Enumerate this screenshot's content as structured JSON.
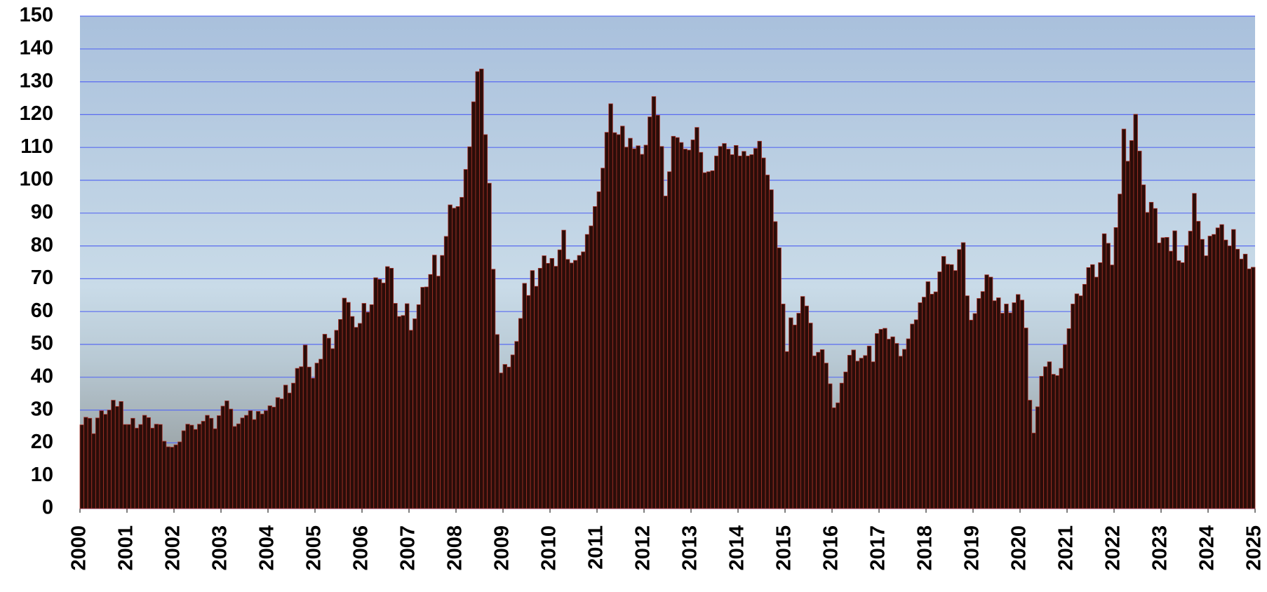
{
  "chart_data": {
    "type": "bar",
    "values": [
      25.5,
      27.8,
      27.5,
      22.8,
      27.6,
      29.8,
      28.7,
      30.0,
      33.0,
      31.1,
      32.6,
      25.6,
      25.6,
      27.5,
      24.5,
      25.6,
      28.4,
      27.7,
      24.5,
      25.7,
      25.6,
      20.5,
      18.8,
      18.7,
      19.4,
      20.3,
      23.7,
      25.7,
      25.4,
      24.1,
      25.7,
      26.6,
      28.4,
      27.5,
      24.3,
      28.3,
      31.2,
      32.8,
      30.3,
      25.0,
      25.8,
      27.6,
      28.4,
      29.8,
      27.1,
      29.6,
      28.8,
      29.8,
      31.3,
      30.9,
      33.8,
      33.4,
      37.6,
      35.2,
      38.2,
      42.7,
      43.2,
      49.8,
      43.1,
      39.7,
      44.3,
      45.5,
      53.1,
      51.9,
      48.7,
      54.3,
      57.6,
      64.1,
      62.8,
      58.5,
      55.2,
      56.4,
      62.5,
      59.8,
      62.1,
      70.3,
      69.8,
      68.7,
      73.7,
      73.2,
      62.5,
      58.5,
      58.8,
      62.4,
      54.3,
      57.8,
      62.1,
      67.4,
      67.5,
      71.3,
      77.2,
      70.8,
      77.1,
      82.9,
      92.5,
      91.5,
      92.0,
      94.8,
      103.3,
      110.2,
      123.9,
      133.1,
      133.9,
      113.9,
      99.1,
      72.9,
      53.0,
      41.3,
      43.9,
      43.1,
      46.8,
      50.9,
      57.9,
      68.6,
      64.9,
      72.5,
      67.7,
      73.2,
      77.0,
      74.7,
      76.2,
      73.8,
      78.8,
      84.8,
      75.9,
      74.8,
      75.6,
      77.1,
      78.2,
      83.5,
      86.1,
      92.0,
      96.5,
      103.7,
      114.6,
      123.3,
      114.5,
      113.9,
      116.5,
      110.1,
      112.8,
      109.6,
      110.5,
      107.9,
      110.7,
      119.3,
      125.5,
      119.8,
      110.3,
      95.2,
      102.6,
      113.4,
      113.0,
      111.5,
      109.5,
      109.2,
      112.3,
      116.1,
      108.5,
      102.3,
      102.6,
      102.9,
      107.4,
      110.3,
      111.2,
      109.5,
      107.8,
      110.6,
      107.4,
      108.8,
      107.4,
      107.8,
      109.7,
      111.9,
      106.8,
      101.6,
      97.1,
      87.4,
      79.4,
      62.3,
      47.8,
      58.1,
      55.9,
      59.5,
      64.6,
      61.7,
      56.5,
      46.5,
      47.6,
      48.4,
      44.3,
      38.0,
      30.7,
      32.2,
      38.2,
      41.6,
      46.7,
      48.3,
      44.9,
      45.8,
      46.6,
      49.5,
      44.7,
      53.3,
      54.6,
      54.9,
      51.6,
      52.3,
      50.3,
      46.4,
      48.5,
      51.7,
      56.2,
      57.5,
      62.7,
      64.4,
      69.1,
      65.3,
      66.0,
      72.1,
      76.8,
      74.4,
      74.3,
      72.5,
      78.9,
      81.0,
      64.8,
      57.4,
      59.4,
      64.0,
      66.1,
      71.2,
      70.5,
      63.3,
      64.2,
      59.5,
      62.3,
      59.6,
      62.7,
      65.2,
      63.5,
      55.0,
      33.0,
      23.0,
      31.0,
      40.3,
      43.2,
      44.7,
      40.9,
      40.5,
      42.7,
      49.9,
      54.8,
      62.3,
      65.4,
      64.8,
      68.3,
      73.4,
      74.3,
      70.5,
      74.9,
      83.7,
      80.8,
      74.2,
      85.6,
      95.8,
      115.6,
      105.8,
      112.1,
      120.1,
      108.9,
      98.6,
      90.2,
      93.3,
      91.4,
      80.9,
      82.5,
      82.6,
      78.4,
      84.6,
      75.5,
      74.9,
      80.1,
      84.5,
      96.0,
      87.5,
      82.0,
      77.0,
      83.0,
      83.5,
      85.5,
      86.5,
      81.8,
      80.0,
      85.0,
      79.0,
      76.0,
      77.5,
      73.0,
      73.5
    ],
    "color": "#2a0d09",
    "edge_color": "#a8332a",
    "xlim": [
      2000,
      2025
    ],
    "xticks": [
      2000,
      2001,
      2002,
      2003,
      2004,
      2005,
      2006,
      2007,
      2008,
      2009,
      2010,
      2011,
      2012,
      2013,
      2014,
      2015,
      2016,
      2017,
      2018,
      2019,
      2020,
      2021,
      2022,
      2023,
      2024,
      2025
    ],
    "ylim": [
      0,
      150
    ],
    "yticks": [
      0,
      10,
      20,
      30,
      40,
      50,
      60,
      70,
      80,
      90,
      100,
      110,
      120,
      130,
      140,
      150
    ],
    "grid": true,
    "grid_color": "#5a6cf0"
  }
}
